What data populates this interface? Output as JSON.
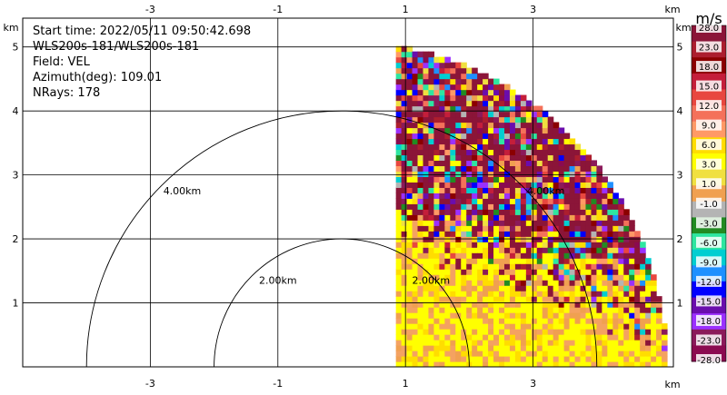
{
  "info": {
    "start_time": "Start time: 2022/05/11 09:50:42.698",
    "instrument": "WLS200s-181/WLS200s-181",
    "field": "Field: VEL",
    "azimuth": "Azimuth(deg): 109.01",
    "nrays": "NRays: 178"
  },
  "chart_data": {
    "type": "heatmap",
    "description_kind": "radar sector display",
    "x_unit": "km",
    "y_unit": "km",
    "xlim": [
      -5.0,
      5.2
    ],
    "ylim": [
      0.0,
      5.45
    ],
    "x_ticks": [
      "-3",
      "-1",
      "1",
      "3"
    ],
    "y_ticks": [
      "1",
      "2",
      "3",
      "4",
      "5"
    ],
    "x_tick_values": [
      -3,
      -1,
      1,
      3
    ],
    "y_tick_values": [
      1,
      2,
      3,
      4,
      5
    ],
    "grid": true,
    "range_rings": [
      {
        "radius_km": 2.0,
        "label": "2.00km"
      },
      {
        "radius_km": 4.0,
        "label": "4.00km"
      }
    ],
    "ring_labels_extra": [
      "2.00km",
      "4.00km"
    ],
    "sector": {
      "x_min_km": 0.85,
      "max_range_km": 5.1
    },
    "colorbar": {
      "unit": "m/s",
      "levels": [
        "28.0",
        "23.0",
        "18.0",
        "15.0",
        "12.0",
        "9.0",
        "6.0",
        "3.0",
        "1.0",
        "-1.0",
        "-3.0",
        "-6.0",
        "-9.0",
        "-12.0",
        "-15.0",
        "-18.0",
        "-23.0",
        "-28.0"
      ],
      "colors": [
        "#8B1538",
        "#AC1E2E",
        "#8B0000",
        "#C41E3A",
        "#E8473F",
        "#F4715A",
        "#FF9966",
        "#FFDD00",
        "#FFFF00",
        "#F0E040",
        "#F0A050",
        "#B4B4B4",
        "#228B22",
        "#2EE6A0",
        "#00CED1",
        "#1E90FF",
        "#0000FF",
        "#6A0DAD",
        "#9B30FF",
        "#8B1A5A",
        "#8B0A50"
      ]
    }
  }
}
